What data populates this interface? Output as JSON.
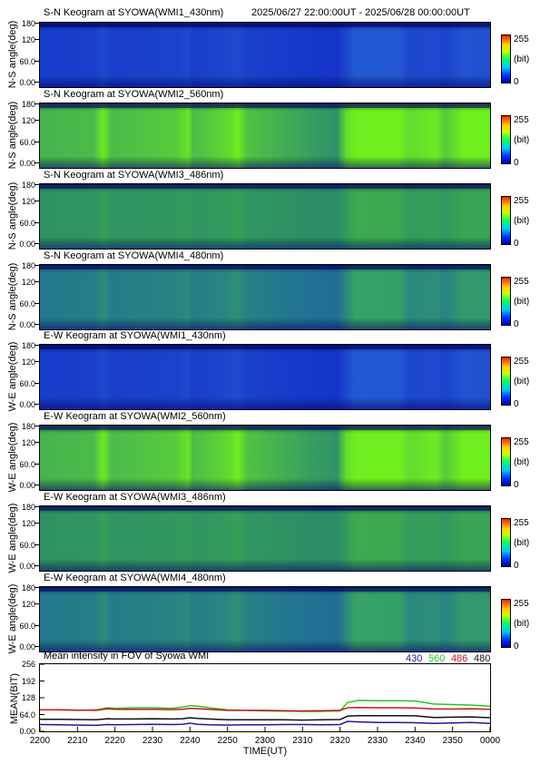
{
  "header": {
    "time_range": "2025/06/27 22:00:00UT - 2025/06/28 00:00:00UT"
  },
  "keograms": [
    {
      "title": "S-N Keogram at SYOWA(WMI1_430nm)",
      "ylabel": "N-S angle(deg)",
      "base": "#1432c8",
      "bright": "#2a6ad8",
      "peak": 0.45
    },
    {
      "title": "S-N Keogram at SYOWA(WMI2_560nm)",
      "ylabel": "N-S angle(deg)",
      "base": "#2a8a70",
      "bright": "#6ef01e",
      "peak": 1.0
    },
    {
      "title": "S-N Keogram at SYOWA(WMI3_486nm)",
      "ylabel": "N-S angle(deg)",
      "base": "#2a8a6a",
      "bright": "#3fb04a",
      "peak": 0.55
    },
    {
      "title": "S-N Keogram at SYOWA(WMI4_480nm)",
      "ylabel": "N-S angle(deg)",
      "base": "#1e6a9a",
      "bright": "#38a860",
      "peak": 0.6
    },
    {
      "title": "E-W Keogram at SYOWA(WMI1_430nm)",
      "ylabel": "W-E angle(deg)",
      "base": "#1432c8",
      "bright": "#2a6ad8",
      "peak": 0.45
    },
    {
      "title": "E-W Keogram at SYOWA(WMI2_560nm)",
      "ylabel": "W-E angle(deg)",
      "base": "#2a8a70",
      "bright": "#6ef01e",
      "peak": 1.0
    },
    {
      "title": "E-W Keogram at SYOWA(WMI3_486nm)",
      "ylabel": "W-E angle(deg)",
      "base": "#2a8a6a",
      "bright": "#3fb04a",
      "peak": 0.55
    },
    {
      "title": "E-W Keogram at SYOWA(WMI4_480nm)",
      "ylabel": "W-E angle(deg)",
      "base": "#1e6a9a",
      "bright": "#38a860",
      "peak": 0.6
    }
  ],
  "keogram_yticks": [
    "180",
    "120",
    "60.0",
    "0.00"
  ],
  "colorbar": {
    "max": "255",
    "unit": "(bit)",
    "min": "0"
  },
  "chart_data": {
    "type": "line",
    "title": "Mean intensity in FOV of Syowa WMI",
    "ylabel": "MEAN(BIT)",
    "xlabel": "TIME(UT)",
    "ylim": [
      0,
      256
    ],
    "yticks": [
      "256",
      "192",
      "128",
      "64.0",
      "0.00"
    ],
    "xticks": [
      "2200",
      "2210",
      "2220",
      "2230",
      "2240",
      "2250",
      "2300",
      "2310",
      "2320",
      "2330",
      "2340",
      "2350",
      "0000"
    ],
    "x_minutes": [
      0,
      5,
      10,
      15,
      18,
      20,
      25,
      30,
      35,
      38,
      40,
      42,
      45,
      50,
      55,
      60,
      65,
      70,
      75,
      80,
      82,
      85,
      90,
      95,
      100,
      105,
      110,
      115,
      120
    ],
    "series": [
      {
        "name": "430",
        "color": "#1a1aa0",
        "values": [
          26,
          25,
          24,
          23,
          26,
          25,
          26,
          27,
          26,
          27,
          31,
          27,
          25,
          24,
          25,
          25,
          26,
          26,
          25,
          26,
          38,
          36,
          34,
          34,
          33,
          30,
          32,
          34,
          30
        ]
      },
      {
        "name": "560",
        "color": "#22c822",
        "values": [
          82,
          82,
          80,
          82,
          90,
          88,
          90,
          90,
          88,
          92,
          98,
          96,
          90,
          82,
          80,
          78,
          77,
          76,
          76,
          78,
          110,
          118,
          117,
          117,
          116,
          104,
          102,
          100,
          96
        ]
      },
      {
        "name": "486",
        "color": "#c81818",
        "values": [
          82,
          82,
          81,
          80,
          86,
          84,
          84,
          84,
          83,
          84,
          88,
          86,
          84,
          80,
          80,
          80,
          79,
          78,
          79,
          80,
          90,
          91,
          90,
          90,
          89,
          85,
          85,
          86,
          84
        ]
      },
      {
        "name": "480",
        "color": "#101010",
        "values": [
          46,
          46,
          45,
          44,
          48,
          47,
          47,
          48,
          47,
          48,
          52,
          49,
          47,
          44,
          44,
          44,
          44,
          43,
          44,
          45,
          58,
          60,
          60,
          60,
          59,
          53,
          54,
          55,
          52
        ]
      }
    ]
  }
}
